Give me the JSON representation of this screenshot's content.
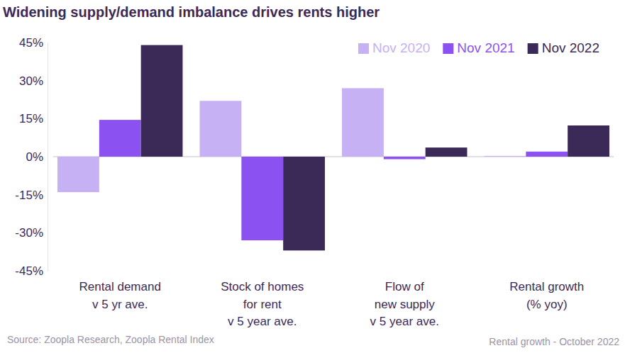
{
  "chart_data": {
    "type": "bar",
    "title": "Widening supply/demand imbalance drives rents higher",
    "categories": [
      "Rental demand\nv 5 yr ave.",
      "Stock of homes\nfor rent\nv 5 year ave.",
      "Flow of\nnew supply\nv 5 year ave.",
      "Rental growth\n(% yoy)"
    ],
    "series": [
      {
        "name": "Nov 2020",
        "color": "#c6b1f4",
        "values": [
          -14,
          22,
          27,
          0.3
        ]
      },
      {
        "name": "Nov 2021",
        "color": "#8c52f1",
        "values": [
          14.5,
          -33,
          -1,
          2
        ]
      },
      {
        "name": "Nov 2022",
        "color": "#3b2a57",
        "values": [
          44,
          -37,
          3.6,
          12.3
        ]
      }
    ],
    "ylim": [
      -45,
      45
    ],
    "yticks": [
      {
        "value": -45,
        "label": "-45%"
      },
      {
        "value": -30,
        "label": "-30%"
      },
      {
        "value": -15,
        "label": "-15%"
      },
      {
        "value": 0,
        "label": "0%"
      },
      {
        "value": 15,
        "label": "15%"
      },
      {
        "value": 30,
        "label": "30%"
      },
      {
        "value": 45,
        "label": "45%"
      }
    ],
    "grid": false,
    "legend": "top-right",
    "annotations": [
      "Source: Zoopla Research, Zoopla Rental Index",
      "Rental growth - October 2022"
    ]
  }
}
